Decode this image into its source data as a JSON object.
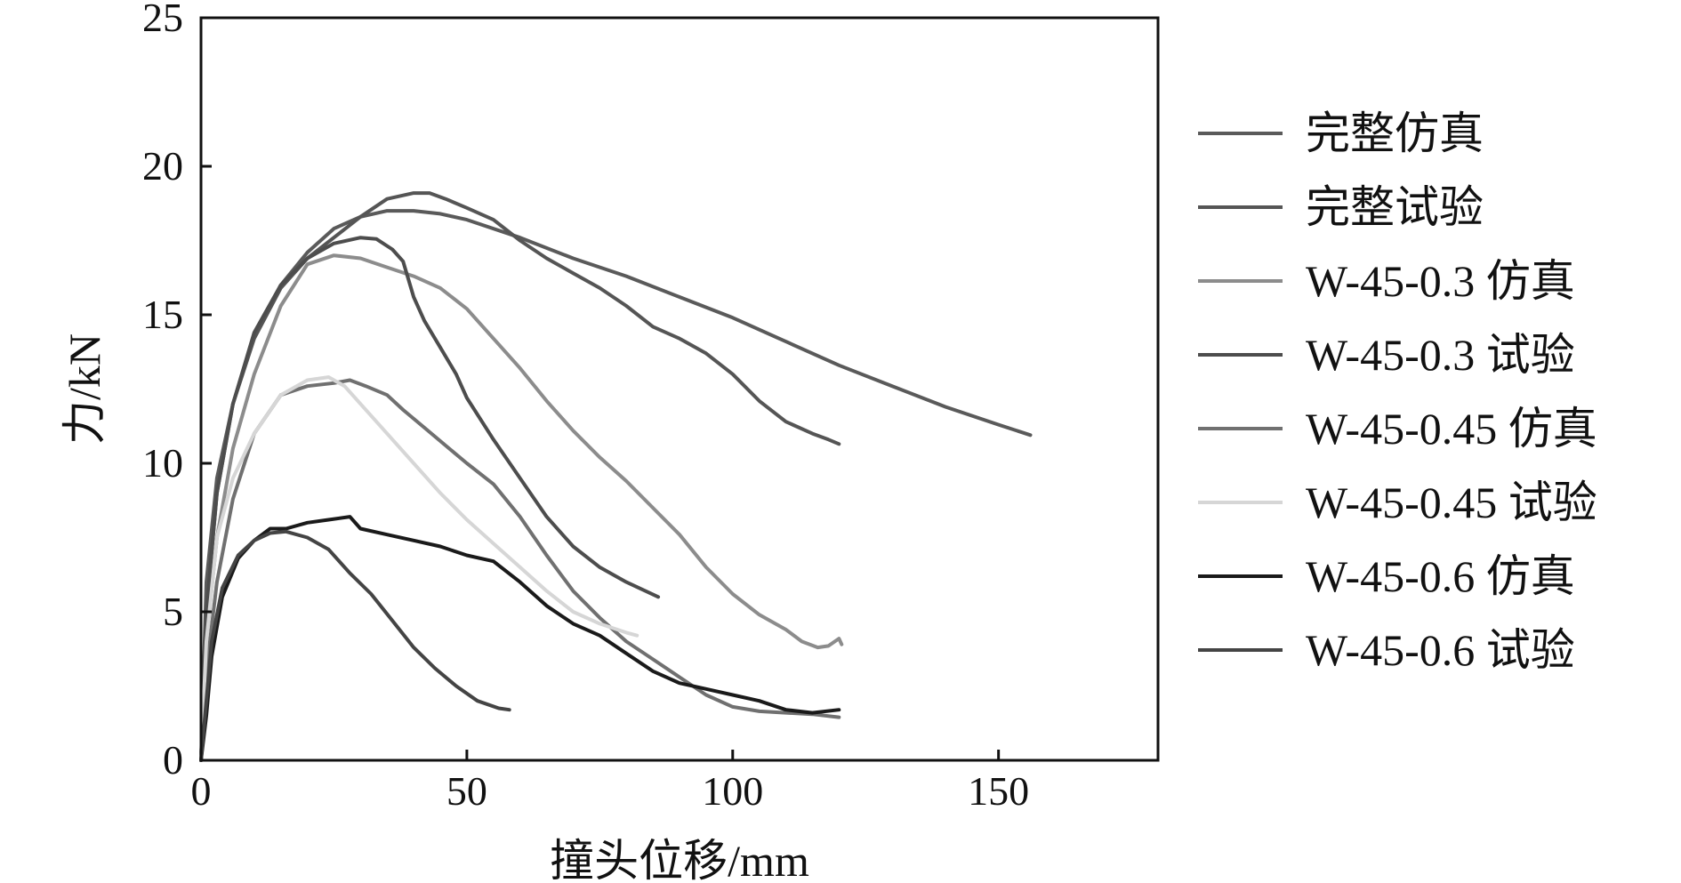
{
  "chart_data": {
    "type": "line",
    "title": "",
    "xlabel": "撞头位移/mm",
    "ylabel": "力/kN",
    "xlim": [
      0,
      180
    ],
    "ylim": [
      0,
      25
    ],
    "xticks": [
      0,
      50,
      100,
      150
    ],
    "yticks": [
      0,
      5,
      10,
      15,
      20,
      25
    ],
    "grid": false,
    "legend_position": "right",
    "series": [
      {
        "name": "完整仿真",
        "color": "#5a5a5a",
        "points": [
          [
            0,
            0
          ],
          [
            1,
            6
          ],
          [
            3,
            9.5
          ],
          [
            6,
            12
          ],
          [
            10,
            14.3
          ],
          [
            15,
            16
          ],
          [
            20,
            17.1
          ],
          [
            25,
            17.9
          ],
          [
            30,
            18.3
          ],
          [
            35,
            18.5
          ],
          [
            40,
            18.5
          ],
          [
            45,
            18.4
          ],
          [
            50,
            18.2
          ],
          [
            60,
            17.6
          ],
          [
            70,
            16.9
          ],
          [
            80,
            16.3
          ],
          [
            90,
            15.6
          ],
          [
            100,
            14.9
          ],
          [
            110,
            14.1
          ],
          [
            120,
            13.3
          ],
          [
            130,
            12.6
          ],
          [
            140,
            11.9
          ],
          [
            150,
            11.3
          ],
          [
            156,
            10.95
          ]
        ]
      },
      {
        "name": "完整试验",
        "color": "#555555",
        "points": [
          [
            0,
            0
          ],
          [
            1,
            5
          ],
          [
            3,
            9
          ],
          [
            6,
            12
          ],
          [
            10,
            14.2
          ],
          [
            15,
            15.9
          ],
          [
            20,
            16.9
          ],
          [
            25,
            17.6
          ],
          [
            30,
            18.3
          ],
          [
            35,
            18.9
          ],
          [
            40,
            19.1
          ],
          [
            43,
            19.1
          ],
          [
            46,
            18.9
          ],
          [
            50,
            18.6
          ],
          [
            55,
            18.2
          ],
          [
            60,
            17.5
          ],
          [
            65,
            16.9
          ],
          [
            70,
            16.4
          ],
          [
            75,
            15.9
          ],
          [
            80,
            15.3
          ],
          [
            85,
            14.6
          ],
          [
            90,
            14.2
          ],
          [
            95,
            13.7
          ],
          [
            100,
            13.0
          ],
          [
            105,
            12.1
          ],
          [
            110,
            11.4
          ],
          [
            115,
            11.0
          ],
          [
            118,
            10.8
          ],
          [
            120,
            10.65
          ]
        ]
      },
      {
        "name": "W-45-0.3 仿真",
        "color": "#8c8c8c",
        "points": [
          [
            0,
            0
          ],
          [
            1,
            4
          ],
          [
            3,
            7.5
          ],
          [
            6,
            10.5
          ],
          [
            10,
            13
          ],
          [
            15,
            15.3
          ],
          [
            20,
            16.7
          ],
          [
            25,
            17.0
          ],
          [
            30,
            16.9
          ],
          [
            35,
            16.6
          ],
          [
            40,
            16.3
          ],
          [
            45,
            15.9
          ],
          [
            50,
            15.2
          ],
          [
            55,
            14.2
          ],
          [
            60,
            13.2
          ],
          [
            65,
            12.1
          ],
          [
            70,
            11.1
          ],
          [
            75,
            10.2
          ],
          [
            80,
            9.4
          ],
          [
            85,
            8.5
          ],
          [
            90,
            7.6
          ],
          [
            95,
            6.5
          ],
          [
            100,
            5.6
          ],
          [
            105,
            4.9
          ],
          [
            110,
            4.4
          ],
          [
            113,
            4.0
          ],
          [
            116,
            3.8
          ],
          [
            118,
            3.85
          ],
          [
            120,
            4.1
          ],
          [
            120.5,
            3.9
          ]
        ]
      },
      {
        "name": "W-45-0.3 试验",
        "color": "#4d4d4d",
        "points": [
          [
            0,
            0
          ],
          [
            1,
            5
          ],
          [
            3,
            9
          ],
          [
            6,
            12
          ],
          [
            10,
            14.4
          ],
          [
            15,
            16
          ],
          [
            20,
            16.9
          ],
          [
            25,
            17.4
          ],
          [
            30,
            17.6
          ],
          [
            33,
            17.55
          ],
          [
            36,
            17.2
          ],
          [
            38,
            16.8
          ],
          [
            40,
            15.6
          ],
          [
            42,
            14.8
          ],
          [
            45,
            13.9
          ],
          [
            48,
            13.0
          ],
          [
            50,
            12.2
          ],
          [
            55,
            10.8
          ],
          [
            60,
            9.5
          ],
          [
            65,
            8.2
          ],
          [
            70,
            7.2
          ],
          [
            75,
            6.5
          ],
          [
            80,
            6.0
          ],
          [
            86,
            5.5
          ]
        ]
      },
      {
        "name": "W-45-0.45 仿真",
        "color": "#707070",
        "points": [
          [
            0,
            0
          ],
          [
            1,
            3
          ],
          [
            3,
            6
          ],
          [
            6,
            8.8
          ],
          [
            10,
            11
          ],
          [
            15,
            12.3
          ],
          [
            20,
            12.6
          ],
          [
            25,
            12.7
          ],
          [
            28,
            12.8
          ],
          [
            31,
            12.6
          ],
          [
            35,
            12.3
          ],
          [
            38,
            11.8
          ],
          [
            42,
            11.2
          ],
          [
            46,
            10.6
          ],
          [
            50,
            10.0
          ],
          [
            55,
            9.3
          ],
          [
            60,
            8.2
          ],
          [
            65,
            6.9
          ],
          [
            70,
            5.7
          ],
          [
            75,
            4.8
          ],
          [
            80,
            4.0
          ],
          [
            85,
            3.4
          ],
          [
            90,
            2.8
          ],
          [
            95,
            2.2
          ],
          [
            100,
            1.8
          ],
          [
            105,
            1.65
          ],
          [
            110,
            1.6
          ],
          [
            115,
            1.55
          ],
          [
            120,
            1.45
          ]
        ]
      },
      {
        "name": "W-45-0.45 试验",
        "color": "#d6d6d6",
        "points": [
          [
            0,
            0
          ],
          [
            1,
            4
          ],
          [
            3,
            7.5
          ],
          [
            6,
            9.5
          ],
          [
            10,
            11
          ],
          [
            15,
            12.3
          ],
          [
            20,
            12.8
          ],
          [
            24,
            12.9
          ],
          [
            27,
            12.6
          ],
          [
            30,
            12.0
          ],
          [
            35,
            11.0
          ],
          [
            40,
            10.0
          ],
          [
            45,
            9.0
          ],
          [
            50,
            8.1
          ],
          [
            55,
            7.3
          ],
          [
            60,
            6.5
          ],
          [
            65,
            5.7
          ],
          [
            70,
            5.0
          ],
          [
            75,
            4.6
          ],
          [
            80,
            4.3
          ],
          [
            82,
            4.2
          ]
        ]
      },
      {
        "name": "W-45-0.6 仿真",
        "color": "#1a1a1a",
        "points": [
          [
            0,
            0
          ],
          [
            1,
            1.5
          ],
          [
            2,
            3.5
          ],
          [
            4,
            5.5
          ],
          [
            7,
            6.8
          ],
          [
            10,
            7.4
          ],
          [
            13,
            7.8
          ],
          [
            16,
            7.8
          ],
          [
            20,
            8.0
          ],
          [
            24,
            8.1
          ],
          [
            28,
            8.2
          ],
          [
            30,
            7.8
          ],
          [
            35,
            7.6
          ],
          [
            40,
            7.4
          ],
          [
            45,
            7.2
          ],
          [
            50,
            6.9
          ],
          [
            55,
            6.7
          ],
          [
            60,
            6.0
          ],
          [
            65,
            5.2
          ],
          [
            70,
            4.6
          ],
          [
            75,
            4.2
          ],
          [
            80,
            3.6
          ],
          [
            85,
            3.0
          ],
          [
            90,
            2.6
          ],
          [
            95,
            2.4
          ],
          [
            100,
            2.2
          ],
          [
            105,
            2.0
          ],
          [
            110,
            1.7
          ],
          [
            115,
            1.6
          ],
          [
            120,
            1.7
          ]
        ]
      },
      {
        "name": "W-45-0.6 试验",
        "color": "#444444",
        "points": [
          [
            0,
            0
          ],
          [
            1,
            2
          ],
          [
            2,
            4
          ],
          [
            4,
            5.8
          ],
          [
            7,
            6.9
          ],
          [
            10,
            7.4
          ],
          [
            13,
            7.65
          ],
          [
            16,
            7.7
          ],
          [
            20,
            7.5
          ],
          [
            24,
            7.1
          ],
          [
            28,
            6.3
          ],
          [
            32,
            5.6
          ],
          [
            36,
            4.7
          ],
          [
            40,
            3.8
          ],
          [
            44,
            3.1
          ],
          [
            48,
            2.5
          ],
          [
            52,
            2.0
          ],
          [
            56,
            1.75
          ],
          [
            58,
            1.7
          ]
        ]
      }
    ]
  }
}
